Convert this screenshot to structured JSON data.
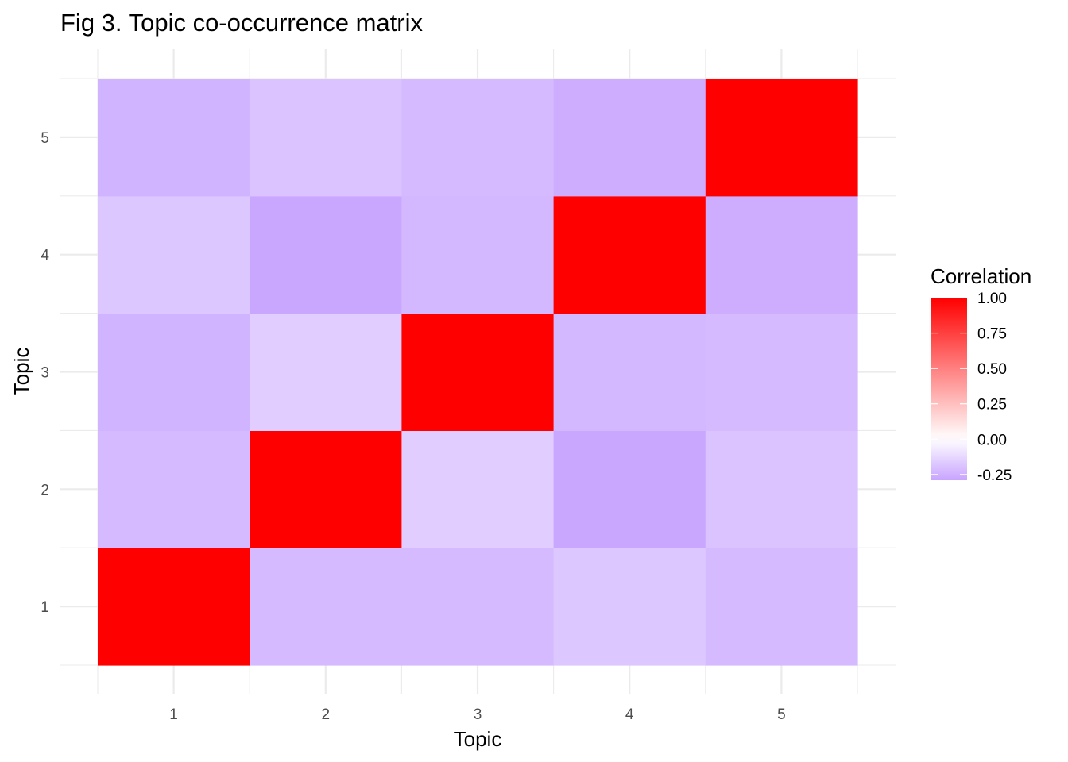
{
  "chart_data": {
    "type": "heatmap",
    "title": "Fig 3. Topic co-occurrence matrix",
    "xlabel": "Topic",
    "ylabel": "Topic",
    "x_categories": [
      "1",
      "2",
      "3",
      "4",
      "5"
    ],
    "y_categories": [
      "1",
      "2",
      "3",
      "4",
      "5"
    ],
    "values": [
      [
        1.0,
        -0.22,
        -0.22,
        -0.18,
        -0.22
      ],
      [
        -0.22,
        1.0,
        -0.16,
        -0.28,
        -0.19
      ],
      [
        -0.24,
        -0.16,
        1.0,
        -0.23,
        -0.22
      ],
      [
        -0.18,
        -0.28,
        -0.23,
        1.0,
        -0.26
      ],
      [
        -0.24,
        -0.19,
        -0.22,
        -0.26,
        1.0
      ]
    ],
    "legend": {
      "title": "Correlation",
      "ticks": [
        1.0,
        0.75,
        0.5,
        0.25,
        0.0,
        -0.25
      ],
      "tick_labels": [
        "1.00",
        "0.75",
        "0.50",
        "0.25",
        "0.00",
        "-0.25"
      ],
      "range": [
        -0.29,
        1.0
      ],
      "placement": "right"
    },
    "colors": {
      "high": "#ff0000",
      "mid": "#ffffff",
      "low": "#c8a4ff"
    },
    "grid": true
  }
}
